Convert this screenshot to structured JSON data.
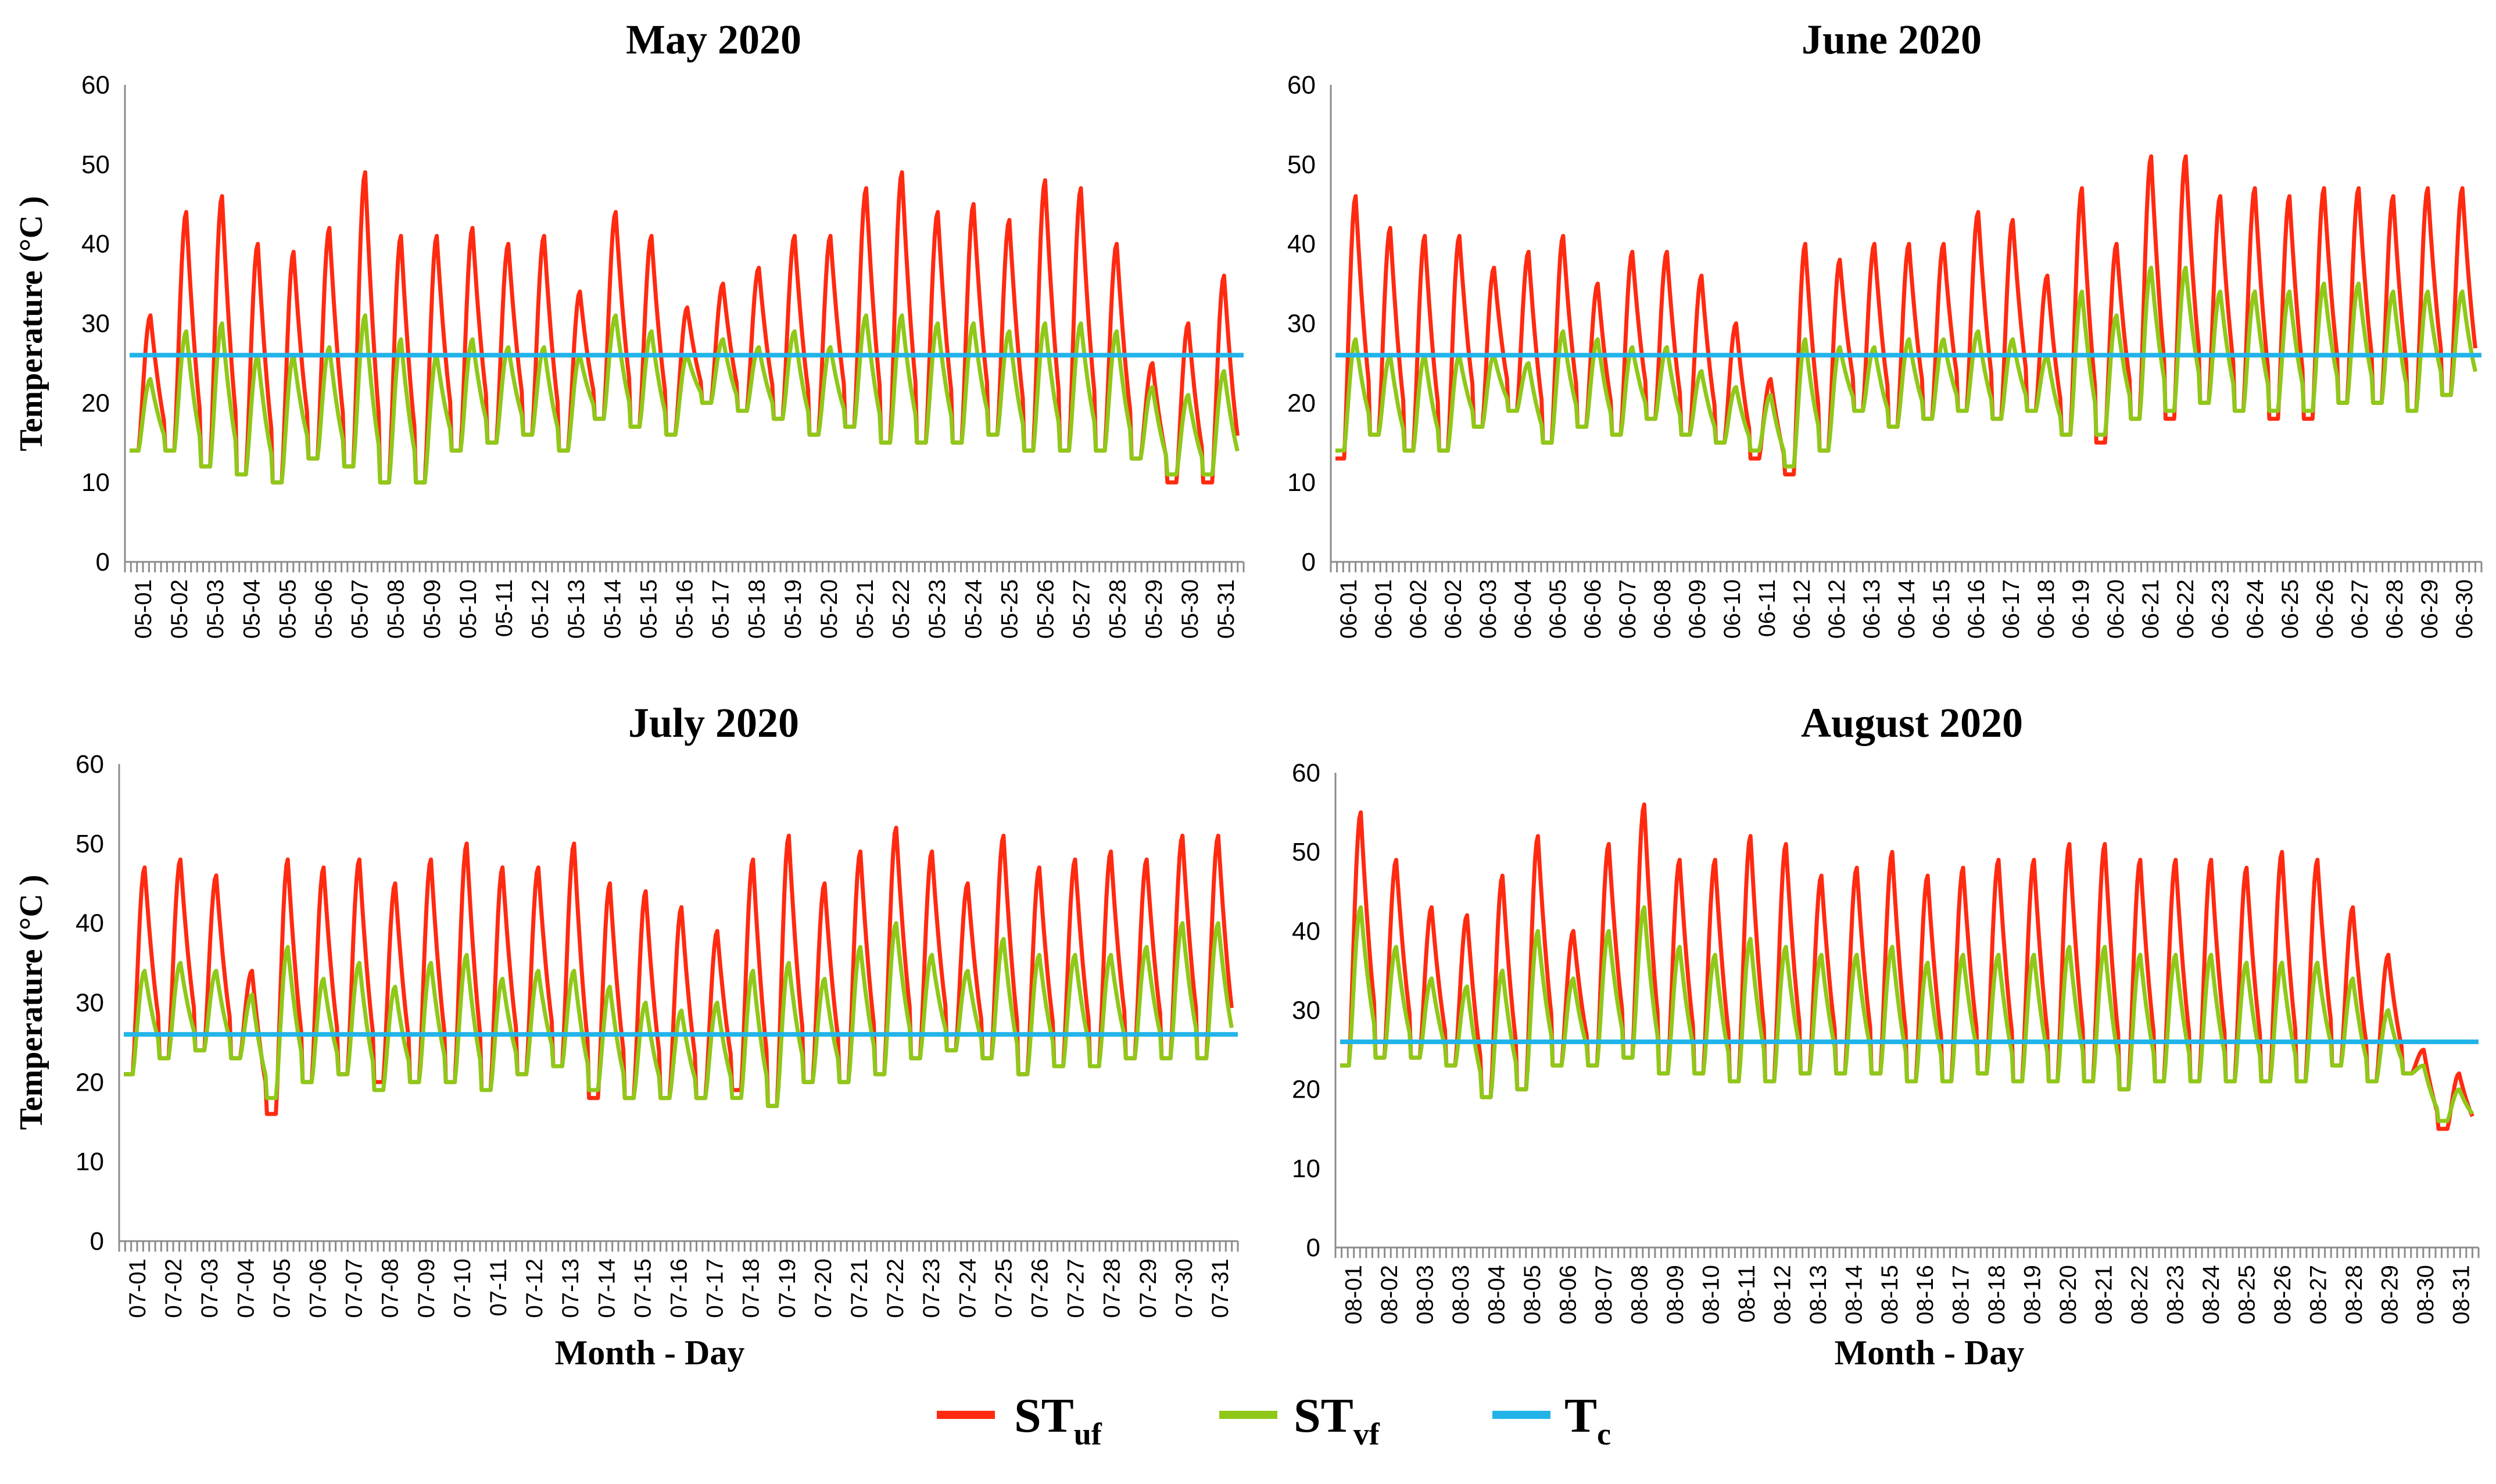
{
  "figure": {
    "legend_position": "bottom-center",
    "legend": [
      {
        "key": "ST_uf",
        "main": "ST",
        "sub": "uf",
        "color": "#ff2a10"
      },
      {
        "key": "ST_vf",
        "main": "ST",
        "sub": "vf",
        "color": "#8fc819"
      },
      {
        "key": "T_c",
        "main": "T",
        "sub": "c",
        "color": "#22b4e8"
      }
    ]
  },
  "chart_data": [
    {
      "type": "line",
      "title": "May 2020",
      "xlabel": "",
      "ylabel": "Temperature (°C )",
      "ylim": [
        0,
        60
      ],
      "yticks": [
        0,
        10,
        20,
        30,
        40,
        50,
        60
      ],
      "categories": [
        "05-01",
        "05-02",
        "05-03",
        "05-04",
        "05-05",
        "05-06",
        "05-07",
        "05-08",
        "05-09",
        "05-10",
        "05-11",
        "05-12",
        "05-13",
        "05-14",
        "05-15",
        "05-16",
        "05-17",
        "05-18",
        "05-19",
        "05-20",
        "05-21",
        "05-22",
        "05-23",
        "05-24",
        "05-25",
        "05-26",
        "05-27",
        "05-28",
        "05-29",
        "05-30",
        "05-31"
      ],
      "threshold": {
        "name": "T_c",
        "value": 26
      },
      "series": [
        {
          "name": "ST_uf",
          "daily_min": [
            14,
            14,
            12,
            11,
            10,
            13,
            12,
            10,
            10,
            14,
            15,
            16,
            14,
            18,
            17,
            16,
            20,
            19,
            18,
            16,
            17,
            15,
            15,
            15,
            16,
            14,
            14,
            14,
            13,
            10,
            10
          ],
          "daily_max": [
            31,
            44,
            46,
            40,
            39,
            42,
            49,
            41,
            41,
            42,
            40,
            41,
            34,
            44,
            41,
            32,
            35,
            37,
            41,
            41,
            47,
            49,
            44,
            45,
            43,
            48,
            47,
            40,
            25,
            30,
            36
          ]
        },
        {
          "name": "ST_vf",
          "daily_min": [
            14,
            14,
            12,
            11,
            10,
            13,
            12,
            10,
            10,
            14,
            15,
            16,
            14,
            18,
            17,
            16,
            20,
            19,
            18,
            16,
            17,
            15,
            15,
            15,
            16,
            14,
            14,
            14,
            13,
            11,
            11
          ],
          "daily_max": [
            23,
            29,
            30,
            26,
            26,
            27,
            31,
            28,
            26,
            28,
            27,
            27,
            26,
            31,
            29,
            26,
            28,
            27,
            29,
            27,
            31,
            31,
            30,
            30,
            29,
            30,
            30,
            29,
            22,
            21,
            24
          ]
        }
      ]
    },
    {
      "type": "line",
      "title": "June 2020",
      "xlabel": "",
      "ylabel": "",
      "ylim": [
        0,
        60
      ],
      "yticks": [
        0,
        10,
        20,
        30,
        40,
        50,
        60
      ],
      "categories": [
        "06-01",
        "06-01",
        "06-02",
        "06-02",
        "06-03",
        "06-04",
        "06-05",
        "06-06",
        "06-07",
        "06-08",
        "06-09",
        "06-10",
        "06-11",
        "06-12",
        "06-12",
        "06-13",
        "06-14",
        "06-15",
        "06-16",
        "06-17",
        "06-18",
        "06-19",
        "06-20",
        "06-21",
        "06-22",
        "06-23",
        "06-24",
        "06-25",
        "06-26",
        "06-27",
        "06-28",
        "06-29",
        "06-30"
      ],
      "threshold": {
        "name": "T_c",
        "value": 26
      },
      "series": [
        {
          "name": "ST_uf",
          "daily_min": [
            13,
            16,
            14,
            14,
            17,
            19,
            15,
            17,
            16,
            18,
            16,
            15,
            13,
            11,
            14,
            19,
            17,
            18,
            19,
            18,
            19,
            16,
            15,
            18,
            18,
            20,
            19,
            18,
            18,
            20,
            20,
            19,
            21
          ],
          "daily_max": [
            46,
            42,
            41,
            41,
            37,
            39,
            41,
            35,
            39,
            39,
            36,
            30,
            23,
            40,
            38,
            40,
            40,
            40,
            44,
            43,
            36,
            47,
            40,
            51,
            51,
            46,
            47,
            46,
            47,
            47,
            46,
            47,
            47
          ]
        },
        {
          "name": "ST_vf",
          "daily_min": [
            14,
            16,
            14,
            14,
            17,
            19,
            15,
            17,
            16,
            18,
            16,
            15,
            14,
            12,
            14,
            19,
            17,
            18,
            19,
            18,
            19,
            16,
            16,
            18,
            19,
            20,
            19,
            19,
            19,
            20,
            20,
            19,
            21
          ],
          "daily_max": [
            28,
            26,
            26,
            26,
            26,
            25,
            29,
            28,
            27,
            27,
            24,
            22,
            21,
            28,
            27,
            27,
            28,
            28,
            29,
            28,
            26,
            34,
            31,
            37,
            37,
            34,
            34,
            34,
            35,
            35,
            34,
            34,
            34
          ]
        }
      ]
    },
    {
      "type": "line",
      "title": "July 2020",
      "xlabel": "Month - Day",
      "ylabel": "Temperature (°C )",
      "ylim": [
        0,
        60
      ],
      "yticks": [
        0,
        10,
        20,
        30,
        40,
        50,
        60
      ],
      "categories": [
        "07-01",
        "07-02",
        "07-03",
        "07-04",
        "07-05",
        "07-06",
        "07-07",
        "07-08",
        "07-09",
        "07-10",
        "07-11",
        "07-12",
        "07-13",
        "07-14",
        "07-15",
        "07-16",
        "07-17",
        "07-18",
        "07-19",
        "07-20",
        "07-21",
        "07-22",
        "07-23",
        "07-24",
        "07-25",
        "07-26",
        "07-27",
        "07-28",
        "07-29",
        "07-30",
        "07-31"
      ],
      "threshold": {
        "name": "T_c",
        "value": 26
      },
      "series": [
        {
          "name": "ST_uf",
          "daily_min": [
            21,
            23,
            24,
            23,
            16,
            20,
            21,
            20,
            20,
            20,
            19,
            21,
            22,
            18,
            18,
            18,
            18,
            19,
            17,
            20,
            20,
            21,
            23,
            24,
            23,
            21,
            22,
            22,
            23,
            23,
            23
          ],
          "daily_max": [
            47,
            48,
            46,
            34,
            48,
            47,
            48,
            45,
            48,
            50,
            47,
            47,
            50,
            45,
            44,
            42,
            39,
            48,
            51,
            45,
            49,
            52,
            49,
            45,
            51,
            47,
            48,
            49,
            48,
            51,
            51
          ]
        },
        {
          "name": "ST_vf",
          "daily_min": [
            21,
            23,
            24,
            23,
            18,
            20,
            21,
            19,
            20,
            20,
            19,
            21,
            22,
            19,
            18,
            18,
            18,
            18,
            17,
            20,
            20,
            21,
            23,
            24,
            23,
            21,
            22,
            22,
            23,
            23,
            23
          ],
          "daily_max": [
            34,
            35,
            34,
            31,
            37,
            33,
            35,
            32,
            35,
            36,
            33,
            34,
            34,
            32,
            30,
            29,
            30,
            34,
            35,
            33,
            37,
            40,
            36,
            34,
            38,
            36,
            36,
            36,
            37,
            40,
            40
          ]
        }
      ]
    },
    {
      "type": "line",
      "title": "August 2020",
      "xlabel": "Month - Day",
      "ylabel": "",
      "ylim": [
        0,
        60
      ],
      "yticks": [
        0,
        10,
        20,
        30,
        40,
        50,
        60
      ],
      "categories": [
        "08-01",
        "08-02",
        "08-03",
        "08-03",
        "08-04",
        "08-05",
        "08-06",
        "08-07",
        "08-08",
        "08-09",
        "08-10",
        "08-11",
        "08-12",
        "08-13",
        "08-14",
        "08-15",
        "08-16",
        "08-17",
        "08-18",
        "08-19",
        "08-20",
        "08-21",
        "08-22",
        "08-23",
        "08-24",
        "08-25",
        "08-26",
        "08-27",
        "08-28",
        "08-29",
        "08-30",
        "08-31"
      ],
      "threshold": {
        "name": "T_c",
        "value": 26
      },
      "series": [
        {
          "name": "ST_uf",
          "daily_min": [
            23,
            24,
            24,
            23,
            19,
            20,
            23,
            23,
            24,
            22,
            22,
            21,
            21,
            22,
            22,
            22,
            21,
            21,
            22,
            21,
            21,
            21,
            20,
            21,
            21,
            21,
            21,
            21,
            23,
            21,
            22,
            15
          ],
          "daily_max": [
            55,
            49,
            43,
            42,
            47,
            52,
            40,
            51,
            56,
            49,
            49,
            52,
            51,
            47,
            48,
            50,
            47,
            48,
            49,
            49,
            51,
            51,
            49,
            49,
            49,
            48,
            50,
            49,
            43,
            37,
            25,
            22
          ]
        },
        {
          "name": "ST_vf",
          "daily_min": [
            23,
            24,
            24,
            23,
            19,
            20,
            23,
            23,
            24,
            22,
            22,
            21,
            21,
            22,
            22,
            22,
            21,
            21,
            22,
            21,
            21,
            21,
            20,
            21,
            21,
            21,
            21,
            21,
            23,
            21,
            22,
            16
          ],
          "daily_max": [
            43,
            38,
            34,
            33,
            35,
            40,
            34,
            40,
            43,
            38,
            37,
            39,
            38,
            37,
            37,
            38,
            36,
            37,
            37,
            37,
            38,
            38,
            37,
            37,
            37,
            36,
            36,
            36,
            34,
            30,
            23,
            20
          ]
        }
      ]
    }
  ]
}
